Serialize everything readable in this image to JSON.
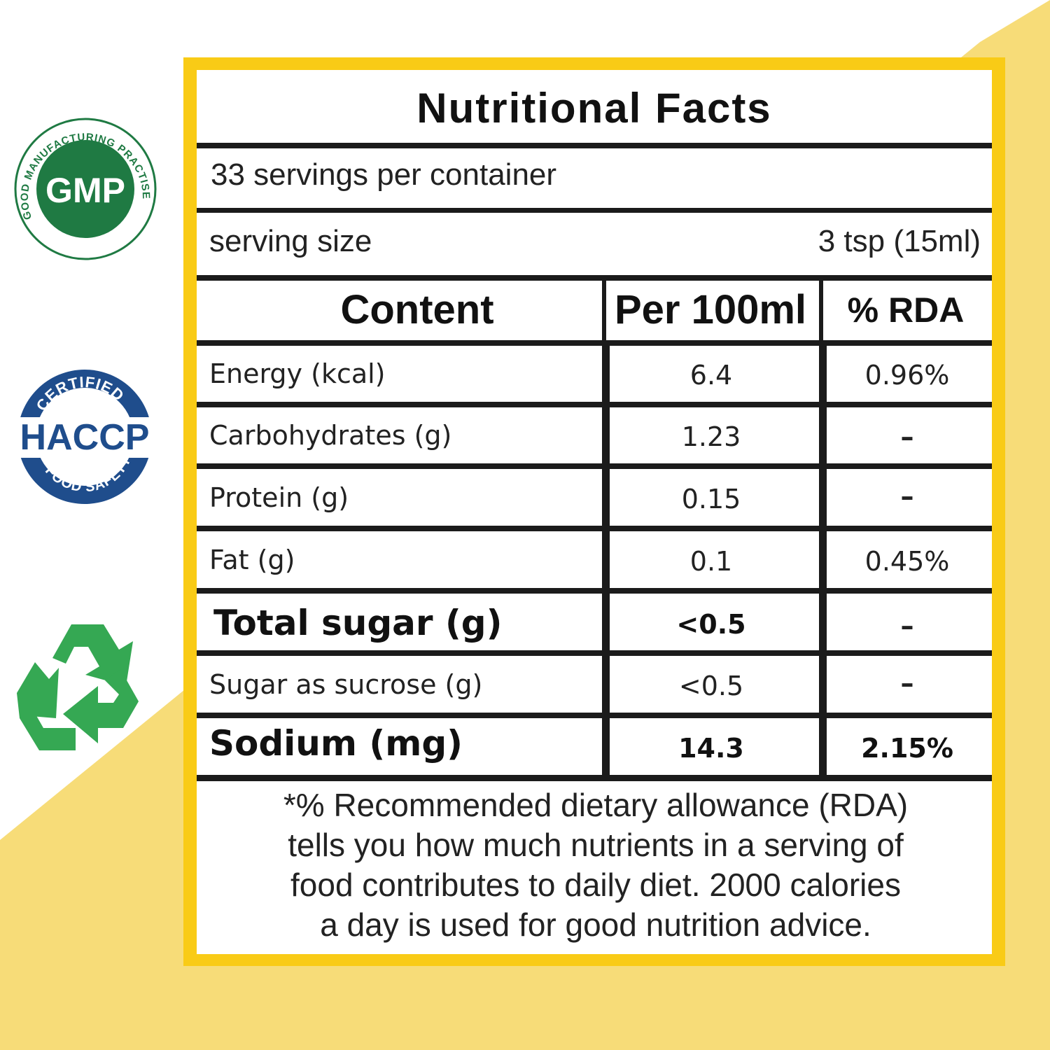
{
  "panel": {
    "title": "Nutritional Facts",
    "servings_per_container": "33 servings per container",
    "serving_size_label": "serving size",
    "serving_size_value": "3 tsp (15ml)"
  },
  "table": {
    "headers": {
      "content": "Content",
      "per_100ml": "Per 100ml",
      "rda": "% RDA"
    },
    "rows": [
      {
        "name": "Energy (kcal)",
        "value": "6.4",
        "rda": "0.96%",
        "bold": false
      },
      {
        "name": "Carbohydrates (g)",
        "value": "1.23",
        "rda": "–",
        "bold": false
      },
      {
        "name": "Protein (g)",
        "value": "0.15",
        "rda": "–",
        "bold": false
      },
      {
        "name": "Fat (g)",
        "value": "0.1",
        "rda": "0.45%",
        "bold": false
      },
      {
        "name": "Total sugar (g)",
        "value": "<0.5",
        "rda": "–",
        "bold": true
      },
      {
        "name": "Sugar as sucrose (g)",
        "value": "<0.5",
        "rda": "–",
        "bold": false
      },
      {
        "name": "Sodium (mg)",
        "value": "14.3",
        "rda": "2.15%",
        "bold": true
      }
    ]
  },
  "footnote": {
    "lines": [
      "*% Recommended dietary allowance (RDA)",
      "tells you how much nutrients in a serving of",
      "food contributes to daily diet. 2000 calories",
      "a day is used for good nutrition advice."
    ]
  },
  "badges": {
    "gmp": {
      "center": "GMP",
      "arc_text": "GOOD MANUFACTURING PRACTISE"
    },
    "haccp": {
      "top": "CERTIFIED",
      "center": "HACCP",
      "bottom": "FOOD SAFETY"
    },
    "recycle": {
      "icon": "recycle-icon"
    }
  },
  "colors": {
    "panel_border": "#f9cb16",
    "background_accent": "#f7dc78",
    "gmp_green": "#1f7a43",
    "haccp_blue": "#1f4d8c",
    "recycle_green": "#35a853"
  }
}
